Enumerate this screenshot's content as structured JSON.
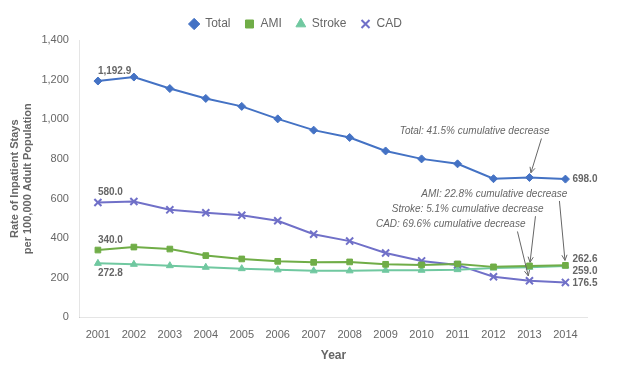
{
  "chart_data": {
    "type": "line",
    "xlabel": "Year",
    "ylabel": "Rate of Inpatient Stays\nper 100,000 Adult Population",
    "x": [
      2001,
      2002,
      2003,
      2004,
      2005,
      2006,
      2007,
      2008,
      2009,
      2010,
      2011,
      2012,
      2013,
      2014
    ],
    "series": [
      {
        "name": "Total",
        "color": "#4472C4",
        "marker": "diamond",
        "values": [
          1192.9,
          1213,
          1155,
          1105,
          1065,
          1002,
          945,
          908,
          840,
          800,
          775,
          700,
          706,
          698.0
        ],
        "value_labels": [
          "1,192.9",
          null,
          null,
          null,
          null,
          null,
          null,
          null,
          null,
          null,
          null,
          null,
          null,
          "698.0"
        ]
      },
      {
        "name": "AMI",
        "color": "#70AD47",
        "marker": "square",
        "values": [
          340.0,
          355,
          345,
          312,
          295,
          283,
          278,
          280,
          268,
          265,
          270,
          255,
          260,
          262.6
        ],
        "value_labels": [
          "340.0",
          null,
          null,
          null,
          null,
          null,
          null,
          null,
          null,
          null,
          null,
          null,
          null,
          "262.6"
        ]
      },
      {
        "name": "Stroke",
        "color": "#70C8A0",
        "marker": "triangle",
        "values": [
          272.8,
          268,
          261,
          253,
          246,
          240,
          235,
          235,
          238,
          238,
          241,
          249,
          253,
          259.0
        ],
        "value_labels": [
          "272.8",
          null,
          null,
          null,
          null,
          null,
          null,
          null,
          null,
          null,
          null,
          null,
          null,
          "259.0"
        ]
      },
      {
        "name": "CAD",
        "color": "#7070C8",
        "marker": "x",
        "values": [
          580.0,
          585,
          543,
          528,
          515,
          488,
          420,
          385,
          325,
          285,
          265,
          205,
          185,
          176.5
        ],
        "value_labels": [
          "580.0",
          null,
          null,
          null,
          null,
          null,
          null,
          null,
          null,
          null,
          null,
          null,
          null,
          "176.5"
        ]
      }
    ],
    "xlim": [
      2000.5,
      2014.6
    ],
    "xticks": [
      2001,
      2002,
      2003,
      2004,
      2005,
      2006,
      2007,
      2008,
      2009,
      2010,
      2011,
      2012,
      2013,
      2014
    ],
    "ylim": [
      0,
      1400
    ],
    "yticks": [
      0,
      200,
      400,
      600,
      800,
      {
        "value": 1000,
        "label": "1,000"
      },
      {
        "value": 1200,
        "label": "1,200"
      },
      {
        "value": 1400,
        "label": "1,400"
      }
    ],
    "annotations": [
      {
        "text": "Total: 41.5% cumulative decrease",
        "series": "Total",
        "x": 2013
      },
      {
        "text": "AMI: 22.8% cumulative decrease",
        "series": "AMI",
        "x": 2014
      },
      {
        "text": "Stroke: 5.1% cumulative decrease",
        "series": "Stroke",
        "x": 2013
      },
      {
        "text": "CAD: 69.6% cumulative decrease",
        "series": "CAD",
        "x": 2013
      }
    ],
    "legend": "top",
    "grid": false
  }
}
